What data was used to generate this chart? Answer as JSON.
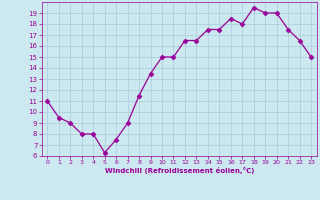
{
  "x": [
    0,
    1,
    2,
    3,
    4,
    5,
    6,
    7,
    8,
    9,
    10,
    11,
    12,
    13,
    14,
    15,
    16,
    17,
    18,
    19,
    20,
    21,
    22,
    23
  ],
  "y": [
    11,
    9.5,
    9,
    8,
    8,
    6.3,
    7.5,
    9,
    11.5,
    13.5,
    15,
    15,
    16.5,
    16.5,
    17.5,
    17.5,
    18.5,
    18,
    19.5,
    19,
    19,
    17.5,
    16.5,
    15
  ],
  "line_color": "#990099",
  "marker": "D",
  "marker_size": 2.5,
  "bg_color": "#cce8f0",
  "grid_color": "#aaccdd",
  "xlabel": "Windchill (Refroidissement éolien,°C)",
  "xlabel_color": "#990099",
  "tick_color": "#990099",
  "ylim": [
    6,
    20
  ],
  "xlim": [
    -0.5,
    23.5
  ],
  "yticks": [
    6,
    7,
    8,
    9,
    10,
    11,
    12,
    13,
    14,
    15,
    16,
    17,
    18,
    19
  ],
  "xticks": [
    0,
    1,
    2,
    3,
    4,
    5,
    6,
    7,
    8,
    9,
    10,
    11,
    12,
    13,
    14,
    15,
    16,
    17,
    18,
    19,
    20,
    21,
    22,
    23
  ],
  "title_color": "#990099"
}
